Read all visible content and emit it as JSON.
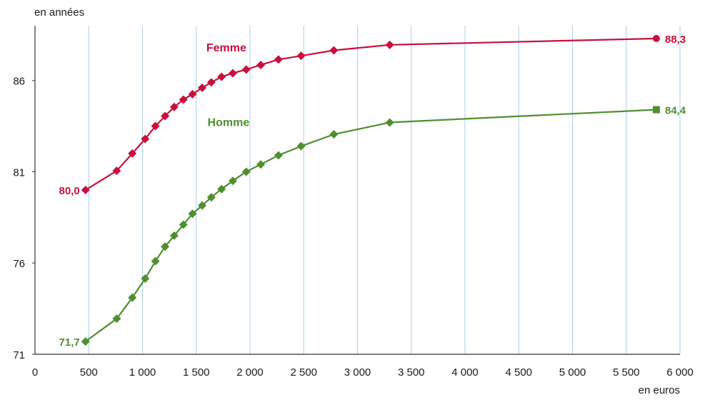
{
  "chart_data": {
    "type": "line",
    "ylabel": "en années",
    "xlabel": "en euros",
    "xlim": [
      0,
      6000
    ],
    "ylim": [
      71,
      89
    ],
    "x_ticks": [
      0,
      500,
      1000,
      1500,
      2000,
      2500,
      3000,
      3500,
      4000,
      4500,
      5000,
      5500,
      6000
    ],
    "x_tick_labels": [
      "0",
      "500",
      "1 000",
      "1 500",
      "2 000",
      "2 500",
      "3 000",
      "3 500",
      "4 000",
      "4 500",
      "5 000",
      "5 500",
      "6 000"
    ],
    "y_ticks": [
      71,
      76,
      81,
      86
    ],
    "y_tick_labels": [
      "71",
      "76",
      "81",
      "86"
    ],
    "grid": "vertical",
    "series": [
      {
        "name": "Femme",
        "color": "#c8103e",
        "marker": "diamond",
        "last_marker": "circle",
        "x": [
          470,
          760,
          905,
          1025,
          1120,
          1210,
          1295,
          1380,
          1465,
          1555,
          1640,
          1735,
          1840,
          1965,
          2100,
          2265,
          2475,
          2780,
          3300,
          5780
        ],
        "y": [
          80.0,
          81.05,
          82.0,
          82.8,
          83.5,
          84.05,
          84.55,
          84.95,
          85.25,
          85.6,
          85.9,
          86.2,
          86.4,
          86.6,
          86.85,
          87.15,
          87.35,
          87.65,
          87.95,
          88.3
        ],
        "start_label": "80,0",
        "end_label": "88,3"
      },
      {
        "name": "Homme",
        "color": "#4f8f2f",
        "marker": "diamond",
        "last_marker": "square",
        "x": [
          470,
          760,
          905,
          1025,
          1120,
          1210,
          1295,
          1380,
          1465,
          1555,
          1640,
          1735,
          1840,
          1965,
          2100,
          2265,
          2475,
          2780,
          3300,
          5780
        ],
        "y": [
          71.7,
          72.95,
          74.1,
          75.15,
          76.1,
          76.9,
          77.5,
          78.1,
          78.7,
          79.15,
          79.6,
          80.05,
          80.5,
          81.0,
          81.4,
          81.9,
          82.4,
          83.05,
          83.7,
          84.4
        ],
        "start_label": "71,7",
        "end_label": "84,4"
      }
    ]
  }
}
